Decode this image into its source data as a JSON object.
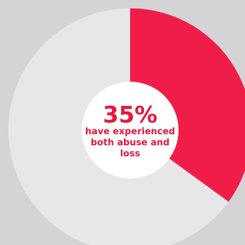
{
  "chart_data": {
    "type": "pie",
    "style": "donut",
    "value_percent": 35,
    "value_label": "35%",
    "caption": "have experienced both abuse and loss",
    "colors": {
      "highlight": "#f01d48",
      "remainder": "#e7e7e9",
      "center": "#ffffff",
      "background": "#d4d4d6",
      "text": "#e8173f"
    }
  }
}
